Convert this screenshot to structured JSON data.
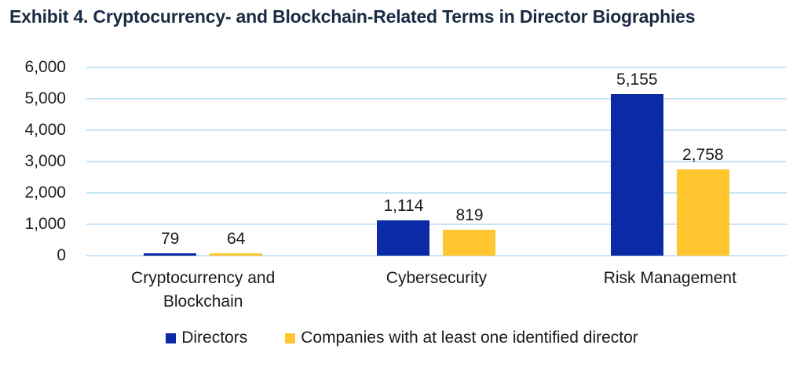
{
  "title": "Exhibit 4. Cryptocurrency- and Blockchain-Related Terms in Director Biographies",
  "chart_data": {
    "type": "bar",
    "title": "Exhibit 4. Cryptocurrency- and Blockchain-Related Terms in Director Biographies",
    "categories": [
      "Cryptocurrency and Blockchain",
      "Cybersecurity",
      "Risk Management"
    ],
    "series": [
      {
        "name": "Directors",
        "color": "#0A2AA6",
        "values": [
          79,
          1114,
          5155
        ],
        "labels": [
          "79",
          "1,114",
          "5,155"
        ]
      },
      {
        "name": "Companies with at least one identified director",
        "color": "#FFC630",
        "values": [
          64,
          819,
          2758
        ],
        "labels": [
          "64",
          "819",
          "2,758"
        ]
      }
    ],
    "xlabel": "",
    "ylabel": "",
    "ylim": [
      0,
      6000
    ],
    "y_tick_step": 1000,
    "y_tick_labels": [
      "6,000",
      "5,000",
      "4,000",
      "3,000",
      "2,000",
      "1,000",
      "0"
    ],
    "grid": true,
    "gridline_color": "#C7E5F6",
    "legend_position": "bottom",
    "background_color": "#FFFFFF",
    "title_color": "#1B2B44",
    "text_color": "#1A1A1A"
  }
}
